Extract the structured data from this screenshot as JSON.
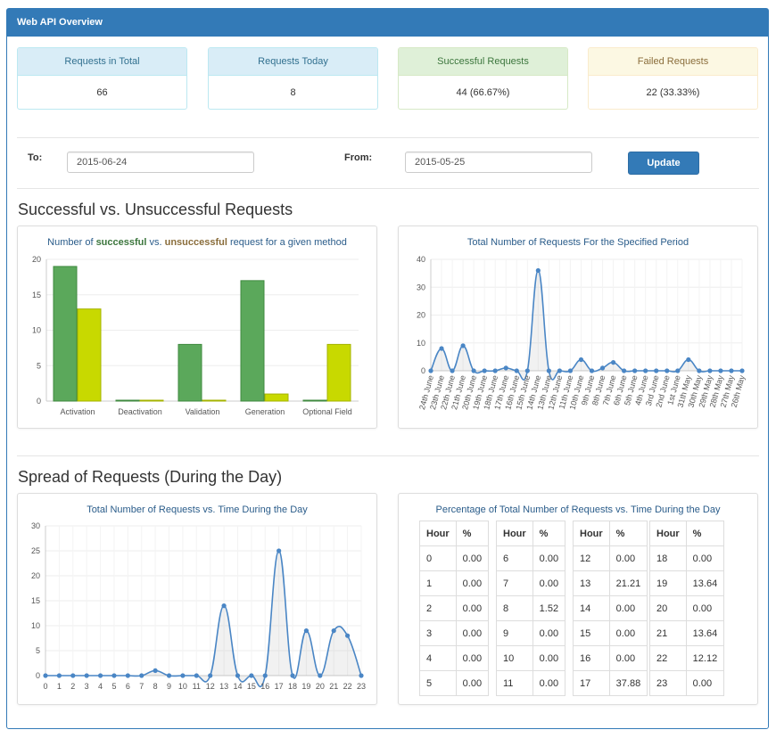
{
  "panel": {
    "title": "Web API Overview"
  },
  "stats": [
    {
      "label": "Requests in Total",
      "value": "66"
    },
    {
      "label": "Requests Today",
      "value": "8"
    },
    {
      "label": "Successful Requests",
      "value": "44 (66.67%)"
    },
    {
      "label": "Failed Requests",
      "value": "22 (33.33%)"
    }
  ],
  "filters": {
    "to_label": "To:",
    "to_value": "2015-06-24",
    "from_label": "From:",
    "from_value": "2015-05-25",
    "update_label": "Update"
  },
  "sections": {
    "success_title": "Successful vs. Unsuccessful Requests",
    "spread_title": "Spread of Requests (During the Day)"
  },
  "bar_title": {
    "prefix": "Number of ",
    "success": "successful",
    "mid": " vs. ",
    "fail": "unsuccessful",
    "suffix": " request for a given method"
  },
  "period_title": "Total Number of Requests For the Specified Period",
  "hour_title": "Total Number of Requests vs. Time During the Day",
  "table_title": "Percentage of Total Number of Requests vs. Time During the Day",
  "table_headers": {
    "hour": "Hour",
    "pct": "%"
  },
  "hour_pct": [
    {
      "hour": "0",
      "pct": "0.00"
    },
    {
      "hour": "1",
      "pct": "0.00"
    },
    {
      "hour": "2",
      "pct": "0.00"
    },
    {
      "hour": "3",
      "pct": "0.00"
    },
    {
      "hour": "4",
      "pct": "0.00"
    },
    {
      "hour": "5",
      "pct": "0.00"
    },
    {
      "hour": "6",
      "pct": "0.00"
    },
    {
      "hour": "7",
      "pct": "0.00"
    },
    {
      "hour": "8",
      "pct": "1.52"
    },
    {
      "hour": "9",
      "pct": "0.00"
    },
    {
      "hour": "10",
      "pct": "0.00"
    },
    {
      "hour": "11",
      "pct": "0.00"
    },
    {
      "hour": "12",
      "pct": "0.00"
    },
    {
      "hour": "13",
      "pct": "21.21"
    },
    {
      "hour": "14",
      "pct": "0.00"
    },
    {
      "hour": "15",
      "pct": "0.00"
    },
    {
      "hour": "16",
      "pct": "0.00"
    },
    {
      "hour": "17",
      "pct": "37.88"
    },
    {
      "hour": "18",
      "pct": "0.00"
    },
    {
      "hour": "19",
      "pct": "13.64"
    },
    {
      "hour": "20",
      "pct": "0.00"
    },
    {
      "hour": "21",
      "pct": "13.64"
    },
    {
      "hour": "22",
      "pct": "12.12"
    },
    {
      "hour": "23",
      "pct": "0.00"
    }
  ],
  "colors": {
    "primary": "#337ab7",
    "success_bar": "#5ba85b",
    "fail_bar": "#c8d900",
    "line": "#4a86c5"
  },
  "chart_data": [
    {
      "type": "bar",
      "categories": [
        "Activation",
        "Deactivation",
        "Validation",
        "Generation",
        "Optional Field"
      ],
      "series": [
        {
          "values": [
            19,
            0,
            8,
            17,
            0
          ]
        },
        {
          "values": [
            13,
            0,
            0,
            1,
            8
          ]
        }
      ],
      "ylim": [
        0,
        20
      ],
      "yticks": [
        0,
        5,
        10,
        15,
        20
      ],
      "grid": true
    },
    {
      "type": "line",
      "x": [
        "24th June",
        "23th June",
        "22th June",
        "21th June",
        "20th June",
        "19th June",
        "18th June",
        "17th June",
        "16th June",
        "15th June",
        "14th June",
        "13th June",
        "12th June",
        "11th June",
        "10th June",
        "9th June",
        "8th June",
        "7th June",
        "6th June",
        "5th June",
        "4th June",
        "3rd June",
        "2nd June",
        "1st June",
        "31th May",
        "30th May",
        "29th May",
        "28th May",
        "27th May",
        "26th May"
      ],
      "values": [
        0,
        8,
        0,
        9,
        0,
        0,
        0,
        1,
        0,
        0,
        36,
        0,
        0,
        0,
        4,
        0,
        1,
        3,
        0,
        0,
        0,
        0,
        0,
        0,
        4,
        0,
        0,
        0,
        0,
        0
      ],
      "ylim": [
        0,
        40
      ],
      "yticks": [
        0,
        10,
        20,
        30,
        40
      ],
      "grid": true
    },
    {
      "type": "line",
      "x": [
        "0",
        "1",
        "2",
        "3",
        "4",
        "5",
        "6",
        "7",
        "8",
        "9",
        "10",
        "11",
        "12",
        "13",
        "14",
        "15",
        "16",
        "17",
        "18",
        "19",
        "20",
        "21",
        "22",
        "23"
      ],
      "values": [
        0,
        0,
        0,
        0,
        0,
        0,
        0,
        0,
        1,
        0,
        0,
        0,
        0,
        14,
        0,
        0,
        0,
        25,
        0,
        9,
        0,
        9,
        8,
        0
      ],
      "ylim": [
        0,
        30
      ],
      "yticks": [
        0,
        5,
        10,
        15,
        20,
        25,
        30
      ],
      "grid": true
    }
  ]
}
